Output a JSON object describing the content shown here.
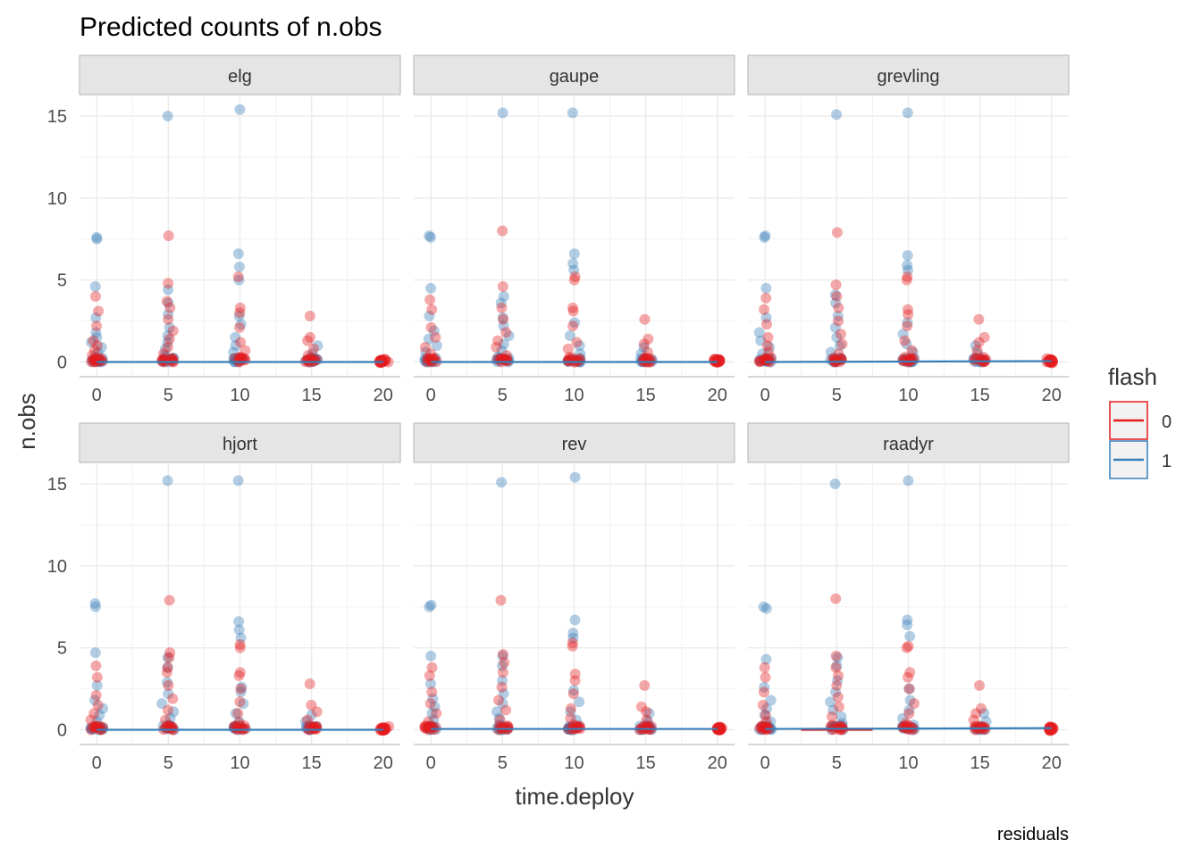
{
  "title": "Predicted counts of n.obs",
  "caption": "residuals",
  "chart_data": {
    "type": "scatter",
    "facet_labels": [
      "elg",
      "gaupe",
      "grevling",
      "hjort",
      "rev",
      "raadyr"
    ],
    "xlabel": "time.deploy",
    "ylabel": "n.obs",
    "x_ticks": [
      0,
      5,
      10,
      15,
      20
    ],
    "y_ticks": [
      0,
      5,
      10,
      15
    ],
    "xlim": [
      -1.2,
      21.2
    ],
    "ylim": [
      -0.9,
      16.2
    ],
    "grid": true,
    "legend": {
      "title": "flash",
      "position": "right",
      "entries": [
        {
          "label": "0",
          "color": "#e41a1c"
        },
        {
          "label": "1",
          "color": "#377eb8"
        }
      ]
    },
    "series": [
      {
        "name": "0",
        "color": "#e41a1c"
      },
      {
        "name": "1",
        "color": "#377eb8"
      }
    ],
    "points": [
      [
        {
          "flash": 1,
          "x": 0,
          "y": [
            7.6,
            7.5,
            4.6,
            2.7,
            1.8,
            1.5,
            1.2,
            0.9,
            0.6,
            0.3,
            0.1,
            0
          ]
        },
        {
          "flash": 0,
          "x": 0,
          "y": [
            4.0,
            3.1,
            2.2,
            1.3,
            1.0,
            0.7,
            0.4,
            0.2,
            0
          ]
        },
        {
          "flash": 1,
          "x": 5,
          "y": [
            15.0,
            4.4,
            3.6,
            2.9,
            2.1,
            1.6,
            1.2,
            0.8,
            0.4,
            0.1,
            0
          ]
        },
        {
          "flash": 0,
          "x": 5,
          "y": [
            7.7,
            4.8,
            3.7,
            3.3,
            2.6,
            1.9,
            1.4,
            0.9,
            0.5,
            0.2,
            0
          ]
        },
        {
          "flash": 1,
          "x": 10,
          "y": [
            15.4,
            6.6,
            5.8,
            5.0,
            2.8,
            2.3,
            1.5,
            1.0,
            0.6,
            0.2,
            0
          ]
        },
        {
          "flash": 0,
          "x": 10,
          "y": [
            5.2,
            3.3,
            3.0,
            2.1,
            1.2,
            0.7,
            0.3,
            0
          ]
        },
        {
          "flash": 1,
          "x": 15,
          "y": [
            1.0,
            0.5,
            0.2,
            0
          ]
        },
        {
          "flash": 0,
          "x": 15,
          "y": [
            2.8,
            1.5,
            1.3,
            0.8,
            0.4,
            0.1,
            0
          ]
        },
        {
          "flash": 0,
          "x": 20,
          "y": [
            0.1,
            0
          ]
        }
      ],
      [
        {
          "flash": 1,
          "x": 0,
          "y": [
            7.7,
            7.6,
            4.5,
            2.8,
            1.9,
            1.4,
            1.0,
            0.6,
            0.2,
            0
          ]
        },
        {
          "flash": 0,
          "x": 0,
          "y": [
            3.8,
            3.2,
            2.1,
            1.5,
            0.9,
            0.5,
            0.1,
            0
          ]
        },
        {
          "flash": 1,
          "x": 5,
          "y": [
            15.2,
            4.0,
            3.6,
            2.7,
            2.2,
            1.6,
            1.1,
            0.7,
            0.3,
            0
          ]
        },
        {
          "flash": 0,
          "x": 5,
          "y": [
            8.0,
            4.6,
            3.3,
            2.6,
            1.8,
            1.3,
            0.9,
            0.4,
            0
          ]
        },
        {
          "flash": 1,
          "x": 10,
          "y": [
            15.2,
            6.6,
            6.0,
            5.6,
            2.4,
            1.6,
            1.0,
            0.5,
            0.1,
            0
          ]
        },
        {
          "flash": 0,
          "x": 10,
          "y": [
            5.2,
            5.0,
            3.3,
            3.1,
            2.2,
            1.2,
            0.8,
            0.3,
            0
          ]
        },
        {
          "flash": 1,
          "x": 15,
          "y": [
            0.9,
            0.5,
            0.2,
            0
          ]
        },
        {
          "flash": 0,
          "x": 15,
          "y": [
            2.6,
            1.4,
            1.1,
            0.6,
            0.2,
            0
          ]
        },
        {
          "flash": 0,
          "x": 20,
          "y": [
            0.1,
            0
          ]
        }
      ],
      [
        {
          "flash": 1,
          "x": 0,
          "y": [
            7.7,
            7.6,
            4.5,
            2.7,
            1.8,
            1.3,
            0.9,
            0.5,
            0.1,
            0
          ]
        },
        {
          "flash": 0,
          "x": 0,
          "y": [
            3.9,
            3.2,
            2.3,
            1.5,
            1.0,
            0.6,
            0.2,
            0
          ]
        },
        {
          "flash": 1,
          "x": 5,
          "y": [
            15.1,
            4.1,
            3.6,
            2.8,
            2.1,
            1.5,
            1.0,
            0.6,
            0.2,
            0
          ]
        },
        {
          "flash": 0,
          "x": 5,
          "y": [
            7.9,
            4.7,
            4.0,
            3.3,
            2.5,
            1.7,
            1.1,
            0.5,
            0
          ]
        },
        {
          "flash": 1,
          "x": 10,
          "y": [
            15.2,
            6.5,
            5.9,
            5.6,
            2.4,
            1.7,
            1.1,
            0.6,
            0.2,
            0
          ]
        },
        {
          "flash": 0,
          "x": 10,
          "y": [
            5.2,
            5.0,
            3.2,
            2.9,
            2.2,
            1.3,
            0.7,
            0.3,
            0
          ]
        },
        {
          "flash": 1,
          "x": 15,
          "y": [
            1.0,
            0.5,
            0.2,
            0
          ]
        },
        {
          "flash": 0,
          "x": 15,
          "y": [
            2.6,
            1.5,
            1.2,
            0.7,
            0.3,
            0
          ]
        },
        {
          "flash": 0,
          "x": 20,
          "y": [
            0.2,
            0
          ]
        }
      ],
      [
        {
          "flash": 1,
          "x": 0,
          "y": [
            7.7,
            7.5,
            4.7,
            2.7,
            1.8,
            1.3,
            0.9,
            0.5,
            0.1,
            0
          ]
        },
        {
          "flash": 0,
          "x": 0,
          "y": [
            3.9,
            3.2,
            2.1,
            1.5,
            1.0,
            0.6,
            0.2,
            0
          ]
        },
        {
          "flash": 1,
          "x": 5,
          "y": [
            15.2,
            4.4,
            3.8,
            2.9,
            2.2,
            1.6,
            1.1,
            0.7,
            0.3,
            0
          ]
        },
        {
          "flash": 0,
          "x": 5,
          "y": [
            7.9,
            4.7,
            4.4,
            3.8,
            3.5,
            2.7,
            1.9,
            1.2,
            0.6,
            0
          ]
        },
        {
          "flash": 1,
          "x": 10,
          "y": [
            15.2,
            6.6,
            6.1,
            5.6,
            2.6,
            2.3,
            1.6,
            1.0,
            0.5,
            0
          ]
        },
        {
          "flash": 0,
          "x": 10,
          "y": [
            5.2,
            5.0,
            3.5,
            3.3,
            2.5,
            1.7,
            1.0,
            0.4,
            0
          ]
        },
        {
          "flash": 1,
          "x": 15,
          "y": [
            0.9,
            0.5,
            0.2,
            0
          ]
        },
        {
          "flash": 0,
          "x": 15,
          "y": [
            2.8,
            1.5,
            1.1,
            0.6,
            0.2,
            0
          ]
        },
        {
          "flash": 0,
          "x": 20,
          "y": [
            0.2,
            0
          ]
        }
      ],
      [
        {
          "flash": 1,
          "x": 0,
          "y": [
            7.6,
            7.5,
            4.5,
            2.8,
            1.9,
            1.4,
            1.0,
            0.6,
            0.2,
            0
          ]
        },
        {
          "flash": 0,
          "x": 0,
          "y": [
            3.8,
            3.3,
            2.3,
            1.6,
            1.0,
            0.5,
            0.1,
            0
          ]
        },
        {
          "flash": 1,
          "x": 5,
          "y": [
            15.1,
            4.5,
            3.9,
            3.0,
            2.2,
            1.6,
            1.1,
            0.7,
            0.3,
            0
          ]
        },
        {
          "flash": 0,
          "x": 5,
          "y": [
            7.9,
            4.6,
            4.1,
            3.5,
            2.6,
            1.8,
            1.2,
            0.6,
            0
          ]
        },
        {
          "flash": 1,
          "x": 10,
          "y": [
            15.4,
            6.7,
            5.9,
            5.6,
            2.4,
            1.7,
            1.1,
            0.6,
            0.2,
            0
          ]
        },
        {
          "flash": 0,
          "x": 10,
          "y": [
            5.3,
            5.1,
            3.4,
            3.0,
            2.2,
            1.3,
            0.7,
            0.3,
            0
          ]
        },
        {
          "flash": 1,
          "x": 15,
          "y": [
            1.0,
            0.5,
            0.2,
            0
          ]
        },
        {
          "flash": 0,
          "x": 15,
          "y": [
            2.7,
            1.4,
            1.1,
            0.6,
            0.2,
            0
          ]
        },
        {
          "flash": 0,
          "x": 20,
          "y": [
            0.1,
            0
          ]
        }
      ],
      [
        {
          "flash": 1,
          "x": 0,
          "y": [
            7.5,
            7.4,
            4.3,
            2.6,
            1.8,
            1.3,
            0.9,
            0.5,
            0.1,
            0
          ]
        },
        {
          "flash": 0,
          "x": 0,
          "y": [
            3.8,
            3.2,
            2.3,
            1.5,
            0.9,
            0.5,
            0.1,
            0
          ]
        },
        {
          "flash": 1,
          "x": 5,
          "y": [
            15.0,
            4.4,
            3.9,
            3.0,
            2.3,
            1.7,
            1.2,
            0.8,
            0.4,
            0
          ]
        },
        {
          "flash": 0,
          "x": 5,
          "y": [
            8.0,
            4.5,
            3.8,
            3.3,
            2.7,
            2.0,
            1.4,
            0.8,
            0.3,
            0
          ]
        },
        {
          "flash": 1,
          "x": 10,
          "y": [
            15.2,
            6.7,
            6.4,
            5.7,
            2.5,
            1.8,
            1.2,
            0.7,
            0.3,
            0
          ]
        },
        {
          "flash": 0,
          "x": 10,
          "y": [
            5.1,
            5.0,
            3.5,
            3.2,
            2.5,
            1.6,
            1.0,
            0.4,
            0
          ]
        },
        {
          "flash": 1,
          "x": 15,
          "y": [
            1.0,
            0.5,
            0.2,
            0
          ]
        },
        {
          "flash": 0,
          "x": 15,
          "y": [
            2.7,
            1.3,
            1.0,
            0.6,
            0.2,
            0
          ]
        },
        {
          "flash": 0,
          "x": 20,
          "y": [
            0.1,
            0
          ]
        }
      ]
    ],
    "fit_lines": [
      [
        {
          "flash": 1,
          "x": [
            0,
            20
          ],
          "y": [
            0.0,
            0.0
          ]
        }
      ],
      [
        {
          "flash": 1,
          "x": [
            0,
            20
          ],
          "y": [
            0.0,
            0.0
          ]
        }
      ],
      [
        {
          "flash": 1,
          "x": [
            0,
            20
          ],
          "y": [
            0.0,
            0.05
          ]
        }
      ],
      [
        {
          "flash": 1,
          "x": [
            0,
            20
          ],
          "y": [
            0.0,
            0.0
          ]
        }
      ],
      [
        {
          "flash": 1,
          "x": [
            0,
            20
          ],
          "y": [
            0.05,
            0.05
          ]
        }
      ],
      [
        {
          "flash": 0,
          "x": [
            2.5,
            7.5
          ],
          "y": [
            0.0,
            0.0
          ]
        },
        {
          "flash": 1,
          "x": [
            0,
            20
          ],
          "y": [
            0.05,
            0.1
          ]
        }
      ]
    ]
  }
}
